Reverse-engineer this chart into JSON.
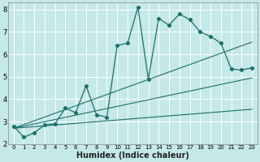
{
  "xlabel": "Humidex (Indice chaleur)",
  "xlim": [
    -0.5,
    23.5
  ],
  "ylim": [
    2,
    8.3
  ],
  "bg_color": "#c5e8e8",
  "grid_color": "#ffffff",
  "line_color": "#1a7068",
  "main_line": {
    "x": [
      0,
      1,
      2,
      3,
      4,
      5,
      6,
      7,
      8,
      9,
      10,
      11,
      12,
      13,
      14,
      15,
      16,
      17,
      18,
      19,
      20,
      21,
      22,
      23
    ],
    "y": [
      2.8,
      2.3,
      2.5,
      2.85,
      2.9,
      3.6,
      3.4,
      4.6,
      3.3,
      3.2,
      6.4,
      6.5,
      8.1,
      4.9,
      7.6,
      7.3,
      7.8,
      7.55,
      7.0,
      6.8,
      6.5,
      5.35,
      5.3,
      5.4
    ]
  },
  "ref_lines": [
    {
      "x": [
        0,
        23
      ],
      "y": [
        2.7,
        6.55
      ]
    },
    {
      "x": [
        0,
        23
      ],
      "y": [
        2.7,
        4.95
      ]
    },
    {
      "x": [
        0,
        23
      ],
      "y": [
        2.7,
        3.55
      ]
    }
  ],
  "xticks": [
    0,
    1,
    2,
    3,
    4,
    5,
    6,
    7,
    8,
    9,
    10,
    11,
    12,
    13,
    14,
    15,
    16,
    17,
    18,
    19,
    20,
    21,
    22,
    23
  ],
  "yticks": [
    2,
    3,
    4,
    5,
    6,
    7,
    8
  ],
  "xtick_fontsize": 5.0,
  "ytick_fontsize": 6.0,
  "xlabel_fontsize": 7.0
}
